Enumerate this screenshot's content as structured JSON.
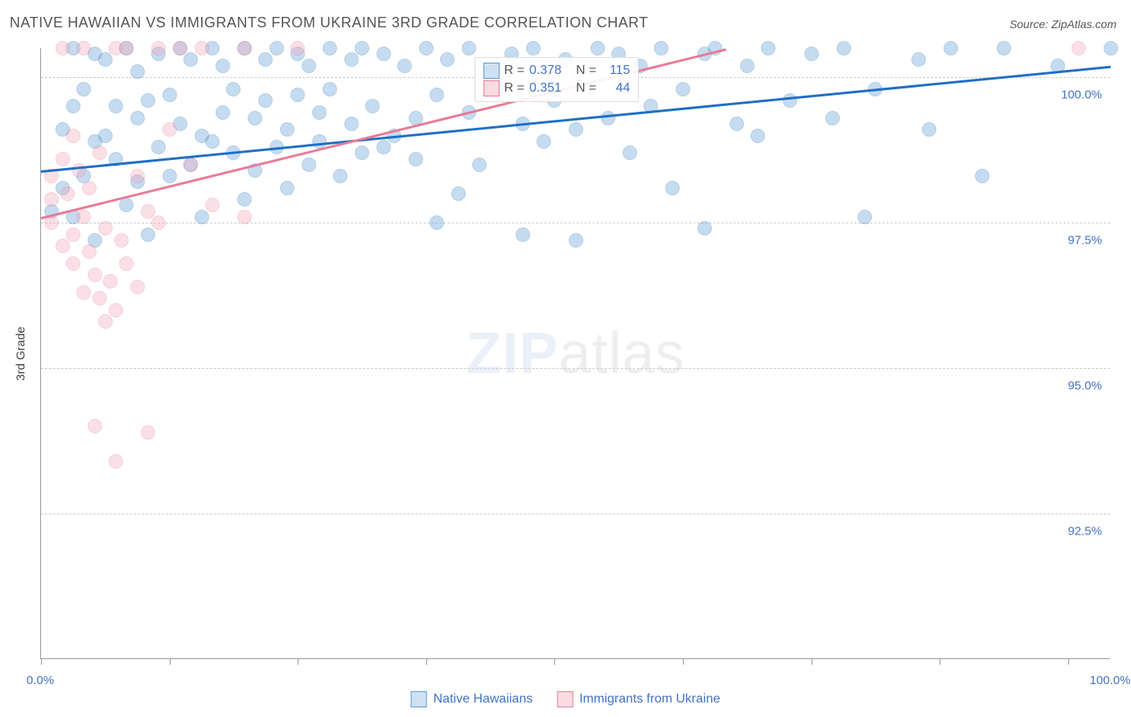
{
  "title": "NATIVE HAWAIIAN VS IMMIGRANTS FROM UKRAINE 3RD GRADE CORRELATION CHART",
  "source_label": "Source: ZipAtlas.com",
  "ylabel": "3rd Grade",
  "watermark_a": "ZIP",
  "watermark_b": "atlas",
  "chart": {
    "type": "scatter",
    "background_color": "#ffffff",
    "grid_color": "#cccccc",
    "axis_color": "#999999",
    "xlim": [
      0,
      100
    ],
    "ylim": [
      90,
      100.5
    ],
    "x_tick_positions": [
      0,
      12,
      24,
      36,
      48,
      60,
      72,
      84,
      96
    ],
    "x_tick_labels_shown": {
      "0": "0.0%",
      "100": "100.0%"
    },
    "y_gridlines": [
      92.5,
      95.0,
      97.5,
      100.0
    ],
    "y_tick_labels": {
      "92.5": "92.5%",
      "95.0": "95.0%",
      "97.5": "97.5%",
      "100.0": "100.0%"
    },
    "ytick_label_color": "#4472c4",
    "xtick_label_color": "#4472c4",
    "point_radius": 9,
    "point_opacity": 0.35,
    "point_stroke_opacity": 0.7,
    "series": [
      {
        "name": "Native Hawaiians",
        "color": "#5b9bd5",
        "stroke": "#2e75b6",
        "trend": {
          "x1": 0,
          "y1": 98.4,
          "x2": 100,
          "y2": 100.2,
          "color": "#1f6fc4",
          "width": 2.5
        },
        "stats": {
          "R": "0.378",
          "N": "115"
        },
        "points": [
          [
            1,
            97.7
          ],
          [
            2,
            99.1
          ],
          [
            2,
            98.1
          ],
          [
            3,
            100.5
          ],
          [
            3,
            99.5
          ],
          [
            3,
            97.6
          ],
          [
            4,
            98.3
          ],
          [
            4,
            99.8
          ],
          [
            5,
            100.4
          ],
          [
            5,
            97.2
          ],
          [
            5,
            98.9
          ],
          [
            6,
            99.0
          ],
          [
            6,
            100.3
          ],
          [
            7,
            99.5
          ],
          [
            7,
            98.6
          ],
          [
            8,
            100.5
          ],
          [
            8,
            97.8
          ],
          [
            9,
            99.3
          ],
          [
            9,
            98.2
          ],
          [
            9,
            100.1
          ],
          [
            10,
            99.6
          ],
          [
            10,
            97.3
          ],
          [
            11,
            100.4
          ],
          [
            11,
            98.8
          ],
          [
            12,
            99.7
          ],
          [
            12,
            98.3
          ],
          [
            13,
            100.5
          ],
          [
            13,
            99.2
          ],
          [
            14,
            98.5
          ],
          [
            14,
            100.3
          ],
          [
            15,
            99.0
          ],
          [
            15,
            97.6
          ],
          [
            16,
            100.5
          ],
          [
            16,
            98.9
          ],
          [
            17,
            99.4
          ],
          [
            17,
            100.2
          ],
          [
            18,
            98.7
          ],
          [
            18,
            99.8
          ],
          [
            19,
            100.5
          ],
          [
            19,
            97.9
          ],
          [
            20,
            99.3
          ],
          [
            20,
            98.4
          ],
          [
            21,
            100.3
          ],
          [
            21,
            99.6
          ],
          [
            22,
            98.8
          ],
          [
            22,
            100.5
          ],
          [
            23,
            99.1
          ],
          [
            23,
            98.1
          ],
          [
            24,
            100.4
          ],
          [
            24,
            99.7
          ],
          [
            25,
            98.5
          ],
          [
            25,
            100.2
          ],
          [
            26,
            99.4
          ],
          [
            26,
            98.9
          ],
          [
            27,
            100.5
          ],
          [
            27,
            99.8
          ],
          [
            28,
            98.3
          ],
          [
            29,
            100.3
          ],
          [
            29,
            99.2
          ],
          [
            30,
            98.7
          ],
          [
            30,
            100.5
          ],
          [
            31,
            99.5
          ],
          [
            32,
            98.8
          ],
          [
            32,
            100.4
          ],
          [
            33,
            99.0
          ],
          [
            34,
            100.2
          ],
          [
            35,
            99.3
          ],
          [
            35,
            98.6
          ],
          [
            36,
            100.5
          ],
          [
            37,
            99.7
          ],
          [
            37,
            97.5
          ],
          [
            38,
            100.3
          ],
          [
            39,
            98.0
          ],
          [
            40,
            99.4
          ],
          [
            40,
            100.5
          ],
          [
            41,
            98.5
          ],
          [
            42,
            100.2
          ],
          [
            43,
            99.8
          ],
          [
            44,
            100.4
          ],
          [
            45,
            99.2
          ],
          [
            45,
            97.3
          ],
          [
            46,
            100.5
          ],
          [
            47,
            98.9
          ],
          [
            48,
            99.6
          ],
          [
            49,
            100.3
          ],
          [
            50,
            97.2
          ],
          [
            50,
            99.1
          ],
          [
            52,
            100.5
          ],
          [
            53,
            99.3
          ],
          [
            54,
            100.4
          ],
          [
            55,
            98.7
          ],
          [
            56,
            100.2
          ],
          [
            57,
            99.5
          ],
          [
            58,
            100.5
          ],
          [
            59,
            98.1
          ],
          [
            60,
            99.8
          ],
          [
            62,
            100.4
          ],
          [
            62,
            97.4
          ],
          [
            63,
            100.5
          ],
          [
            65,
            99.2
          ],
          [
            66,
            100.2
          ],
          [
            67,
            99.0
          ],
          [
            68,
            100.5
          ],
          [
            70,
            99.6
          ],
          [
            72,
            100.4
          ],
          [
            74,
            99.3
          ],
          [
            75,
            100.5
          ],
          [
            77,
            97.6
          ],
          [
            78,
            99.8
          ],
          [
            82,
            100.3
          ],
          [
            83,
            99.1
          ],
          [
            85,
            100.5
          ],
          [
            88,
            98.3
          ],
          [
            90,
            100.5
          ],
          [
            95,
            100.2
          ],
          [
            100,
            100.5
          ]
        ]
      },
      {
        "name": "Immigrants from Ukraine",
        "color": "#f4a6b8",
        "stroke": "#e87b96",
        "trend": {
          "x1": 0,
          "y1": 97.6,
          "x2": 64,
          "y2": 100.5,
          "color": "#e87b96",
          "width": 2.5
        },
        "stats": {
          "R": "0.351",
          "N": "44"
        },
        "points": [
          [
            1,
            97.9
          ],
          [
            1,
            98.3
          ],
          [
            1,
            97.5
          ],
          [
            2,
            98.6
          ],
          [
            2,
            97.1
          ],
          [
            2,
            100.5
          ],
          [
            2.5,
            98.0
          ],
          [
            3,
            99.0
          ],
          [
            3,
            97.3
          ],
          [
            3,
            96.8
          ],
          [
            3.5,
            98.4
          ],
          [
            4,
            97.6
          ],
          [
            4,
            96.3
          ],
          [
            4,
            100.5
          ],
          [
            4.5,
            98.1
          ],
          [
            4.5,
            97.0
          ],
          [
            5,
            96.6
          ],
          [
            5,
            94.0
          ],
          [
            5.5,
            98.7
          ],
          [
            5.5,
            96.2
          ],
          [
            6,
            97.4
          ],
          [
            6,
            95.8
          ],
          [
            6.5,
            96.5
          ],
          [
            7,
            93.4
          ],
          [
            7,
            96.0
          ],
          [
            7,
            100.5
          ],
          [
            7.5,
            97.2
          ],
          [
            8,
            96.8
          ],
          [
            8,
            100.5
          ],
          [
            9,
            96.4
          ],
          [
            9,
            98.3
          ],
          [
            10,
            97.7
          ],
          [
            10,
            93.9
          ],
          [
            11,
            97.5
          ],
          [
            11,
            100.5
          ],
          [
            12,
            99.1
          ],
          [
            13,
            100.5
          ],
          [
            14,
            98.5
          ],
          [
            15,
            100.5
          ],
          [
            16,
            97.8
          ],
          [
            19,
            100.5
          ],
          [
            19,
            97.6
          ],
          [
            24,
            100.5
          ],
          [
            97,
            100.5
          ]
        ]
      }
    ],
    "legend_bottom": [
      {
        "label": "Native Hawaiians",
        "fill": "#cfe2f3",
        "stroke": "#5b9bd5"
      },
      {
        "label": "Immigrants from Ukraine",
        "fill": "#fadbe3",
        "stroke": "#e87b96"
      }
    ],
    "stats_box": {
      "left_pct": 40.5,
      "top_pct": 1.5,
      "rows": [
        {
          "swatch_fill": "#cfe2f3",
          "swatch_stroke": "#5b9bd5",
          "r_label": "R =",
          "r_val": "0.378",
          "n_label": "N =",
          "n_val": "115"
        },
        {
          "swatch_fill": "#fadbe3",
          "swatch_stroke": "#e87b96",
          "r_label": "R =",
          "r_val": "0.351",
          "n_label": "N =",
          "n_val": "44"
        }
      ],
      "label_color": "#555555",
      "value_color": "#4472c4"
    }
  }
}
